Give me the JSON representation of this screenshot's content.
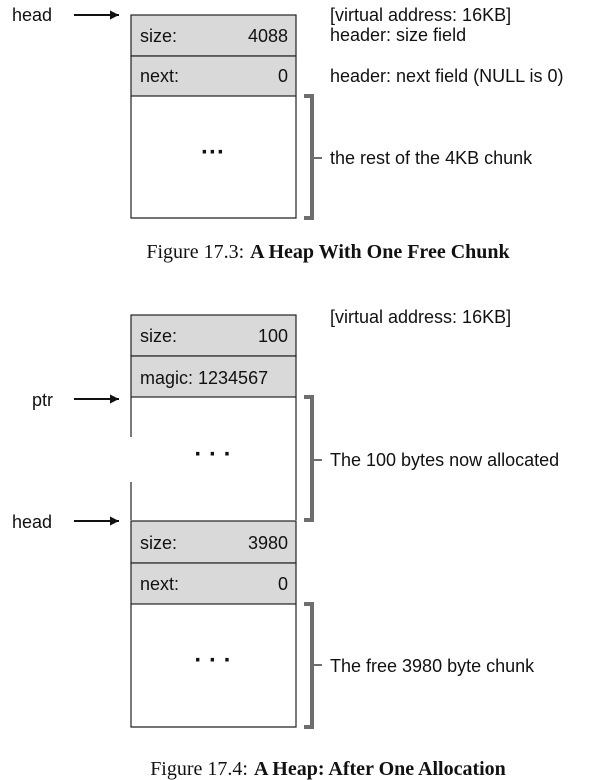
{
  "figure1": {
    "pointer": "head",
    "header_size_label": "size:",
    "header_size_value": "4088",
    "header_next_label": "next:",
    "header_next_value": "0",
    "ellipsis": "···",
    "note_address": "[virtual address: 16KB]",
    "note_size": "header: size field",
    "note_next": "header: next field (NULL is 0)",
    "note_rest": "the rest of the 4KB chunk",
    "caption_number": "Figure 17.3:",
    "caption_title": "A Heap With One Free Chunk"
  },
  "figure2": {
    "note_address": "[virtual address: 16KB]",
    "alloc_size_label": "size:",
    "alloc_size_value": "100",
    "alloc_magic": "magic: 1234567",
    "ptr_pointer": "ptr",
    "ellipsis_alloc": "· · ·",
    "note_alloc": "The 100 bytes now allocated",
    "head_pointer": "head",
    "free_size_label": "size:",
    "free_size_value": "3980",
    "free_next_label": "next:",
    "free_next_value": "0",
    "ellipsis_free": "· · ·",
    "note_free": "The free 3980 byte chunk",
    "caption_number": "Figure 17.4:",
    "caption_title": "A Heap: After One Allocation"
  },
  "colors": {
    "header_fill": "#d9d9d9",
    "stroke": "#222222",
    "bracket": "#6e6e6e"
  }
}
